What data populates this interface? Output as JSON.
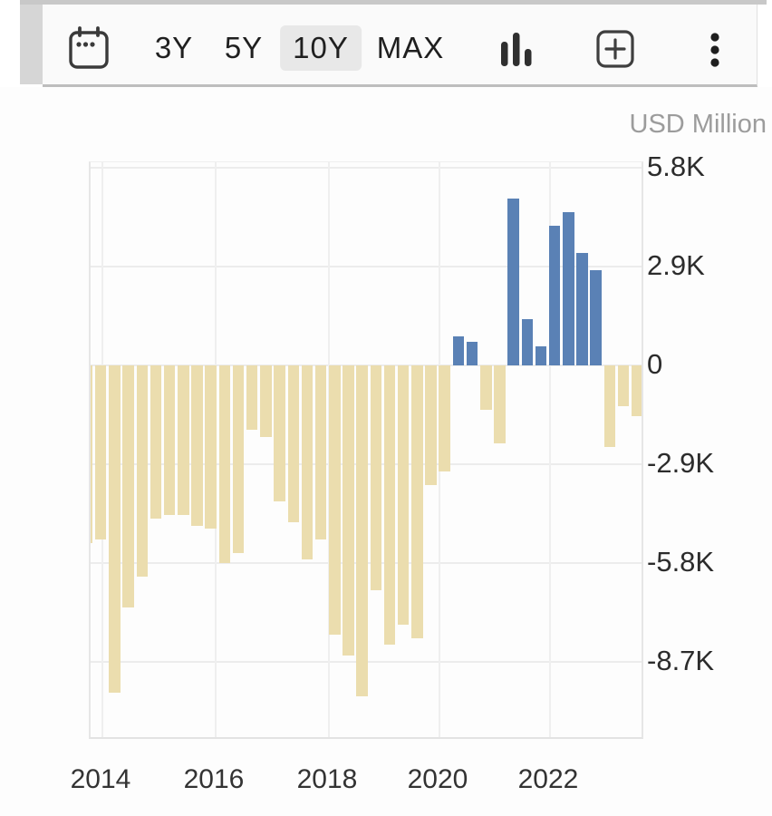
{
  "toolbar": {
    "range_buttons": [
      {
        "label": "3Y",
        "selected": false
      },
      {
        "label": "5Y",
        "selected": false
      },
      {
        "label": "10Y",
        "selected": true
      },
      {
        "label": "MAX",
        "selected": false
      }
    ],
    "selected_bg_color": "#e8e8e8",
    "icons": [
      "calendar-icon",
      "bar-chart-type-icon",
      "add-chart-icon",
      "kebab-menu-icon"
    ]
  },
  "chart": {
    "unit_label": "USD Million",
    "y_axis": {
      "tick_labels": [
        "5.8K",
        "2.9K",
        "0",
        "-2.9K",
        "-5.8K",
        "-8.7K"
      ],
      "tick_values": [
        5800,
        2900,
        0,
        -2900,
        -5800,
        -8700
      ]
    },
    "x_axis": {
      "tick_labels": [
        "2014",
        "2016",
        "2018",
        "2020",
        "2022"
      ]
    }
  },
  "chart_data": {
    "type": "bar",
    "title": "",
    "unit": "USD Million",
    "x": [
      "2013-Q4",
      "2014-Q1",
      "2014-Q2",
      "2014-Q3",
      "2014-Q4",
      "2015-Q1",
      "2015-Q2",
      "2015-Q3",
      "2015-Q4",
      "2016-Q1",
      "2016-Q2",
      "2016-Q3",
      "2016-Q4",
      "2017-Q1",
      "2017-Q2",
      "2017-Q3",
      "2017-Q4",
      "2018-Q1",
      "2018-Q2",
      "2018-Q3",
      "2018-Q4",
      "2019-Q1",
      "2019-Q2",
      "2019-Q3",
      "2019-Q4",
      "2020-Q1",
      "2020-Q2",
      "2020-Q3",
      "2020-Q4",
      "2021-Q1",
      "2021-Q2",
      "2021-Q3",
      "2021-Q4",
      "2022-Q1",
      "2022-Q2",
      "2022-Q3",
      "2022-Q4",
      "2023-Q1",
      "2023-Q2",
      "2023-Q3",
      "2023-Q4"
    ],
    "values": [
      -5200,
      -5100,
      -9600,
      -7100,
      -6200,
      -4500,
      -4400,
      -4400,
      -4700,
      -4800,
      -5800,
      -5500,
      -1900,
      -2100,
      -4000,
      -4600,
      -5700,
      -5100,
      -7900,
      -8500,
      -9700,
      -6600,
      -8200,
      -7600,
      -8000,
      -3500,
      -3100,
      850,
      700,
      -1300,
      -2300,
      4900,
      1350,
      550,
      4100,
      4500,
      3300,
      2800,
      -2400,
      -1200,
      -1500
    ],
    "positive_color": "#5a81b5",
    "negative_color": "#ebddae",
    "ylim": [
      -11000,
      6000
    ],
    "grid": true,
    "legend": false
  }
}
